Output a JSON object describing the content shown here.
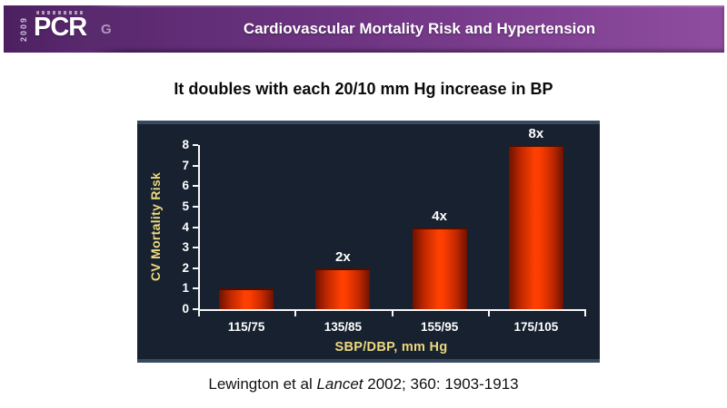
{
  "header": {
    "title": "Cardiovascular Mortality Risk and Hypertension",
    "logo": {
      "main": "PCR",
      "year": "2009",
      "mark": "G"
    },
    "colors": {
      "bar_gradient_left": "#512365",
      "bar_gradient_right": "#8f4d9f",
      "logo_box": "#4c2060",
      "title_text": "#ffffff"
    }
  },
  "subtitle": "It doubles with each 20/10 mm Hg increase in BP",
  "chart_data": {
    "type": "bar",
    "title": "",
    "categories": [
      "115/75",
      "135/85",
      "155/95",
      "175/105"
    ],
    "values": [
      1,
      2,
      4,
      8
    ],
    "bar_labels": [
      "",
      "2x",
      "4x",
      "8x"
    ],
    "xlabel": "SBP/DBP, mm Hg",
    "ylabel": "CV Mortality Risk",
    "ylim": [
      0,
      8
    ],
    "yticks": [
      0,
      1,
      2,
      3,
      4,
      5,
      6,
      7,
      8
    ],
    "grid": false,
    "legend": false,
    "colors": {
      "plot_background": "#17212f",
      "plot_border_strip": "#36495e",
      "bar_fill_core": "#ff4102",
      "bar_fill_edge": "#6d1200",
      "axis": "#f7f7f7",
      "tick_label": "#ffffff",
      "axis_title": "#ecd97f",
      "bar_value_label": "#ffffff"
    }
  },
  "citation": {
    "prefix": "Lewington et al ",
    "italic": "Lancet",
    "suffix": " 2002; 360: 1903-1913"
  }
}
